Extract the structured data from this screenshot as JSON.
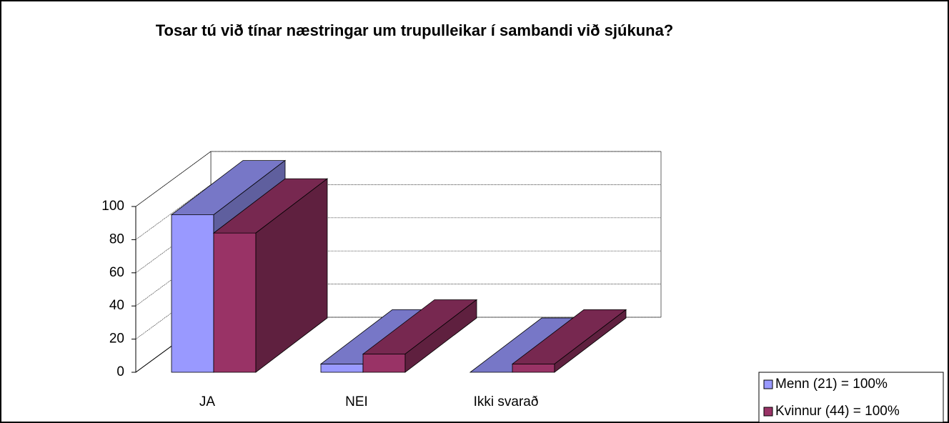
{
  "chart_data": {
    "type": "bar3d",
    "title": "Tosar tú við tínar næstringar um trupulleikar í sambandi við sjúkuna?",
    "categories": [
      "JA",
      "NEI",
      "Ikki svarað"
    ],
    "series": [
      {
        "name": "Menn (21) = 100%",
        "color": "#9999ff",
        "values": [
          95,
          5,
          0
        ]
      },
      {
        "name": "Kvinnur (44) = 100%",
        "color": "#993366",
        "values": [
          84,
          11,
          5
        ]
      }
    ],
    "ylim": [
      0,
      100
    ],
    "yticks": [
      0,
      20,
      40,
      60,
      80,
      100
    ],
    "grid": true,
    "legend": "lower right"
  }
}
